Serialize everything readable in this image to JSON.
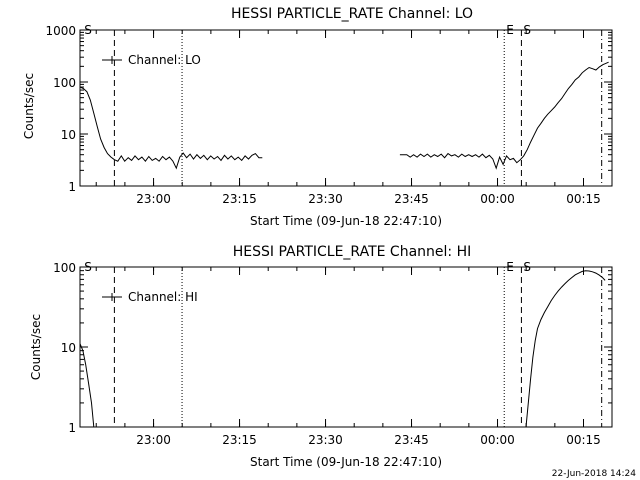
{
  "footer": {
    "timestamp": "22-Jun-2018 14:24"
  },
  "chart_data": [
    {
      "type": "line",
      "title": "HESSI PARTICLE_RATE Channel: LO",
      "xlabel": "Start Time (09-Jun-18 22:47:10)",
      "ylabel": "Counts/sec",
      "yscale": "log",
      "ylim": [
        1,
        1000
      ],
      "yticks": [
        "1",
        "10",
        "100",
        "1000"
      ],
      "xlim_minutes": [
        0,
        92.8
      ],
      "xticks": [
        {
          "label": "23:00",
          "min": 12.83
        },
        {
          "label": "23:15",
          "min": 27.83
        },
        {
          "label": "23:30",
          "min": 42.83
        },
        {
          "label": "23:45",
          "min": 57.83
        },
        {
          "label": "00:00",
          "min": 72.83
        },
        {
          "label": "00:15",
          "min": 87.83
        }
      ],
      "legend": {
        "label": "Channel: LO",
        "placement": "top-left"
      },
      "markers": [
        {
          "label": "S",
          "min": 0.4,
          "style": "none"
        },
        {
          "label": "",
          "min": 6.0,
          "style": "dashed"
        },
        {
          "label": "",
          "min": 17.8,
          "style": "dotted"
        },
        {
          "label": "E",
          "min": 74.0,
          "style": "dotted"
        },
        {
          "label": "S",
          "min": 77.0,
          "style": "dashed"
        },
        {
          "label": "",
          "min": 91.0,
          "style": "dashdot"
        }
      ],
      "series": [
        {
          "name": "Channel: LO",
          "segments": [
            [
              [
                0.0,
                80
              ],
              [
                0.6,
                75
              ],
              [
                1.2,
                65
              ],
              [
                1.8,
                45
              ],
              [
                2.4,
                25
              ],
              [
                3.0,
                14
              ],
              [
                3.6,
                8
              ],
              [
                4.2,
                5.5
              ],
              [
                4.8,
                4.2
              ],
              [
                5.4,
                3.6
              ],
              [
                6.0,
                3.2
              ],
              [
                6.6,
                3.0
              ],
              [
                7.2,
                3.8
              ],
              [
                7.8,
                3.0
              ],
              [
                8.4,
                3.5
              ],
              [
                9.0,
                3.1
              ],
              [
                9.6,
                3.8
              ],
              [
                10.2,
                3.2
              ],
              [
                10.8,
                3.6
              ],
              [
                11.4,
                3.0
              ],
              [
                12.0,
                3.7
              ],
              [
                12.6,
                3.1
              ],
              [
                13.2,
                3.4
              ],
              [
                13.8,
                3.0
              ],
              [
                14.4,
                3.7
              ],
              [
                15.0,
                3.2
              ],
              [
                15.6,
                3.6
              ],
              [
                16.2,
                3.0
              ],
              [
                16.8,
                2.2
              ],
              [
                17.4,
                3.6
              ],
              [
                18.0,
                4.3
              ],
              [
                18.6,
                3.5
              ],
              [
                19.2,
                4.1
              ],
              [
                19.8,
                3.3
              ],
              [
                20.4,
                4.0
              ],
              [
                21.0,
                3.4
              ],
              [
                21.6,
                3.9
              ],
              [
                22.2,
                3.2
              ],
              [
                22.8,
                3.8
              ],
              [
                23.4,
                3.3
              ],
              [
                24.0,
                3.7
              ],
              [
                24.6,
                3.1
              ],
              [
                25.2,
                3.9
              ],
              [
                25.8,
                3.3
              ],
              [
                26.4,
                3.8
              ],
              [
                27.0,
                3.2
              ],
              [
                27.6,
                3.6
              ],
              [
                28.2,
                3.1
              ],
              [
                28.8,
                3.8
              ],
              [
                29.4,
                3.3
              ],
              [
                30.0,
                3.9
              ],
              [
                30.6,
                4.2
              ],
              [
                31.2,
                3.5
              ],
              [
                31.8,
                3.5
              ]
            ],
            [
              [
                55.8,
                4.0
              ],
              [
                56.4,
                4.0
              ],
              [
                57.0,
                4.0
              ],
              [
                57.6,
                3.6
              ],
              [
                58.2,
                4.0
              ],
              [
                58.8,
                3.6
              ],
              [
                59.4,
                4.1
              ],
              [
                60.0,
                3.7
              ],
              [
                60.6,
                4.1
              ],
              [
                61.2,
                3.6
              ],
              [
                61.8,
                4.0
              ],
              [
                62.4,
                3.7
              ],
              [
                63.0,
                4.1
              ],
              [
                63.6,
                3.5
              ],
              [
                64.2,
                4.2
              ],
              [
                64.8,
                3.8
              ],
              [
                65.4,
                4.0
              ],
              [
                66.0,
                3.6
              ],
              [
                66.6,
                4.1
              ],
              [
                67.2,
                3.7
              ],
              [
                67.8,
                4.0
              ],
              [
                68.4,
                3.7
              ],
              [
                69.0,
                4.0
              ],
              [
                69.6,
                3.6
              ],
              [
                70.2,
                4.1
              ],
              [
                70.8,
                3.5
              ],
              [
                71.4,
                3.9
              ],
              [
                72.0,
                3.3
              ],
              [
                72.6,
                2.2
              ],
              [
                73.2,
                3.6
              ],
              [
                73.8,
                2.6
              ],
              [
                74.4,
                3.8
              ],
              [
                75.0,
                3.2
              ],
              [
                75.6,
                3.4
              ],
              [
                76.2,
                2.8
              ],
              [
                76.8,
                3.2
              ],
              [
                77.4,
                3.8
              ],
              [
                78.0,
                5.0
              ],
              [
                78.6,
                7.0
              ],
              [
                79.2,
                9.5
              ],
              [
                79.8,
                13
              ],
              [
                80.4,
                16
              ],
              [
                81.0,
                20
              ],
              [
                81.6,
                24
              ],
              [
                82.2,
                28
              ],
              [
                82.8,
                33
              ],
              [
                83.4,
                40
              ],
              [
                84.0,
                48
              ],
              [
                84.6,
                60
              ],
              [
                85.2,
                75
              ],
              [
                85.8,
                90
              ],
              [
                86.4,
                110
              ],
              [
                87.0,
                125
              ],
              [
                87.6,
                150
              ],
              [
                88.2,
                170
              ],
              [
                88.8,
                190
              ],
              [
                89.4,
                180
              ],
              [
                90.0,
                170
              ],
              [
                90.6,
                195
              ],
              [
                91.2,
                215
              ],
              [
                91.8,
                230
              ],
              [
                92.2,
                240
              ]
            ]
          ]
        }
      ]
    },
    {
      "type": "line",
      "title": "HESSI PARTICLE_RATE Channel: HI",
      "xlabel": "Start Time (09-Jun-18 22:47:10)",
      "ylabel": "Counts/sec",
      "yscale": "log",
      "ylim": [
        1,
        100
      ],
      "yticks": [
        "1",
        "10",
        "100"
      ],
      "xlim_minutes": [
        0,
        92.8
      ],
      "xticks": [
        {
          "label": "23:00",
          "min": 12.83
        },
        {
          "label": "23:15",
          "min": 27.83
        },
        {
          "label": "23:30",
          "min": 42.83
        },
        {
          "label": "23:45",
          "min": 57.83
        },
        {
          "label": "00:00",
          "min": 72.83
        },
        {
          "label": "00:15",
          "min": 87.83
        }
      ],
      "legend": {
        "label": "Channel: HI",
        "placement": "top-left"
      },
      "markers": [
        {
          "label": "S",
          "min": 0.4,
          "style": "none"
        },
        {
          "label": "",
          "min": 6.0,
          "style": "dashed"
        },
        {
          "label": "",
          "min": 17.8,
          "style": "dotted"
        },
        {
          "label": "E",
          "min": 74.0,
          "style": "dotted"
        },
        {
          "label": "S",
          "min": 77.0,
          "style": "dashed"
        },
        {
          "label": "",
          "min": 91.0,
          "style": "dashdot"
        }
      ],
      "series": [
        {
          "name": "Channel: HI",
          "segments": [
            [
              [
                0.0,
                11
              ],
              [
                0.5,
                9
              ],
              [
                1.0,
                6
              ],
              [
                1.5,
                3.5
              ],
              [
                2.0,
                2.0
              ],
              [
                2.4,
                1.0
              ]
            ],
            [
              [
                77.8,
                1.0
              ],
              [
                78.2,
                2.0
              ],
              [
                78.6,
                4.0
              ],
              [
                79.0,
                7.5
              ],
              [
                79.4,
                12
              ],
              [
                79.8,
                17
              ],
              [
                80.4,
                22
              ],
              [
                81.0,
                27
              ],
              [
                81.6,
                32
              ],
              [
                82.2,
                38
              ],
              [
                82.8,
                44
              ],
              [
                83.4,
                50
              ],
              [
                84.0,
                56
              ],
              [
                84.6,
                62
              ],
              [
                85.2,
                68
              ],
              [
                85.8,
                74
              ],
              [
                86.4,
                80
              ],
              [
                87.0,
                84
              ],
              [
                87.6,
                88
              ],
              [
                88.2,
                90
              ],
              [
                88.8,
                89
              ],
              [
                89.4,
                87
              ],
              [
                90.0,
                84
              ],
              [
                90.6,
                79
              ],
              [
                91.2,
                73
              ],
              [
                91.6,
                68
              ]
            ]
          ]
        }
      ]
    }
  ]
}
